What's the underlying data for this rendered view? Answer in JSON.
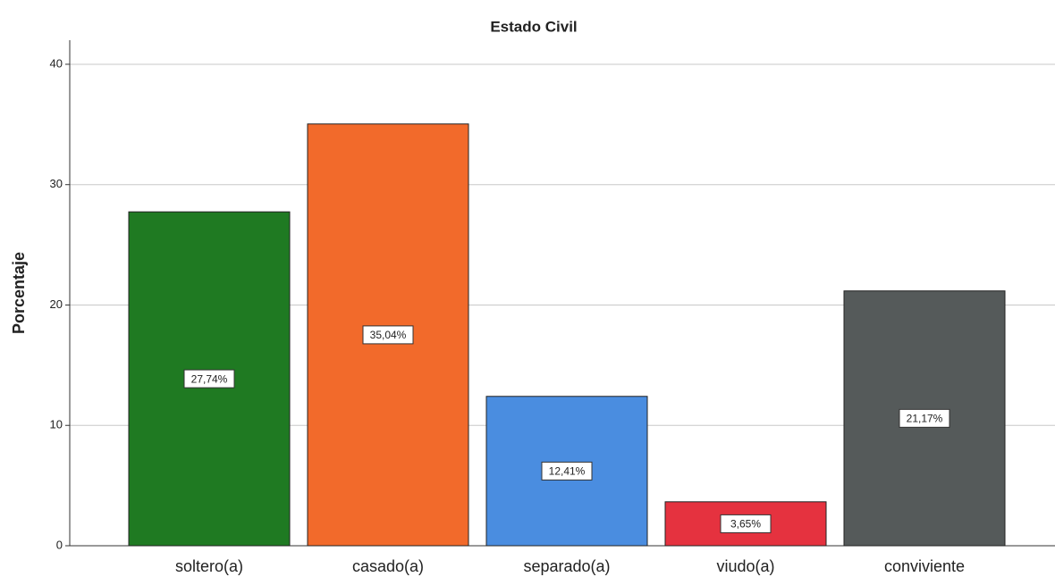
{
  "chart_data": {
    "type": "bar",
    "title": "Estado Civil",
    "y_label": "Porcentaje",
    "categories": [
      "soltero(a)",
      "casado(a)",
      "separado(a)",
      "viudo(a)",
      "conviviente"
    ],
    "values": [
      27.74,
      35.04,
      12.41,
      3.65,
      21.17
    ],
    "value_labels": [
      "27,74%",
      "35,04%",
      "12,41%",
      "3,65%",
      "21,17%"
    ],
    "colors": [
      "#1f7a22",
      "#f26a2b",
      "#4a8de0",
      "#e5323f",
      "#555a5a"
    ],
    "ylim": [
      0,
      42
    ],
    "yticks": [
      0,
      10,
      20,
      30,
      40
    ],
    "grid": true
  }
}
